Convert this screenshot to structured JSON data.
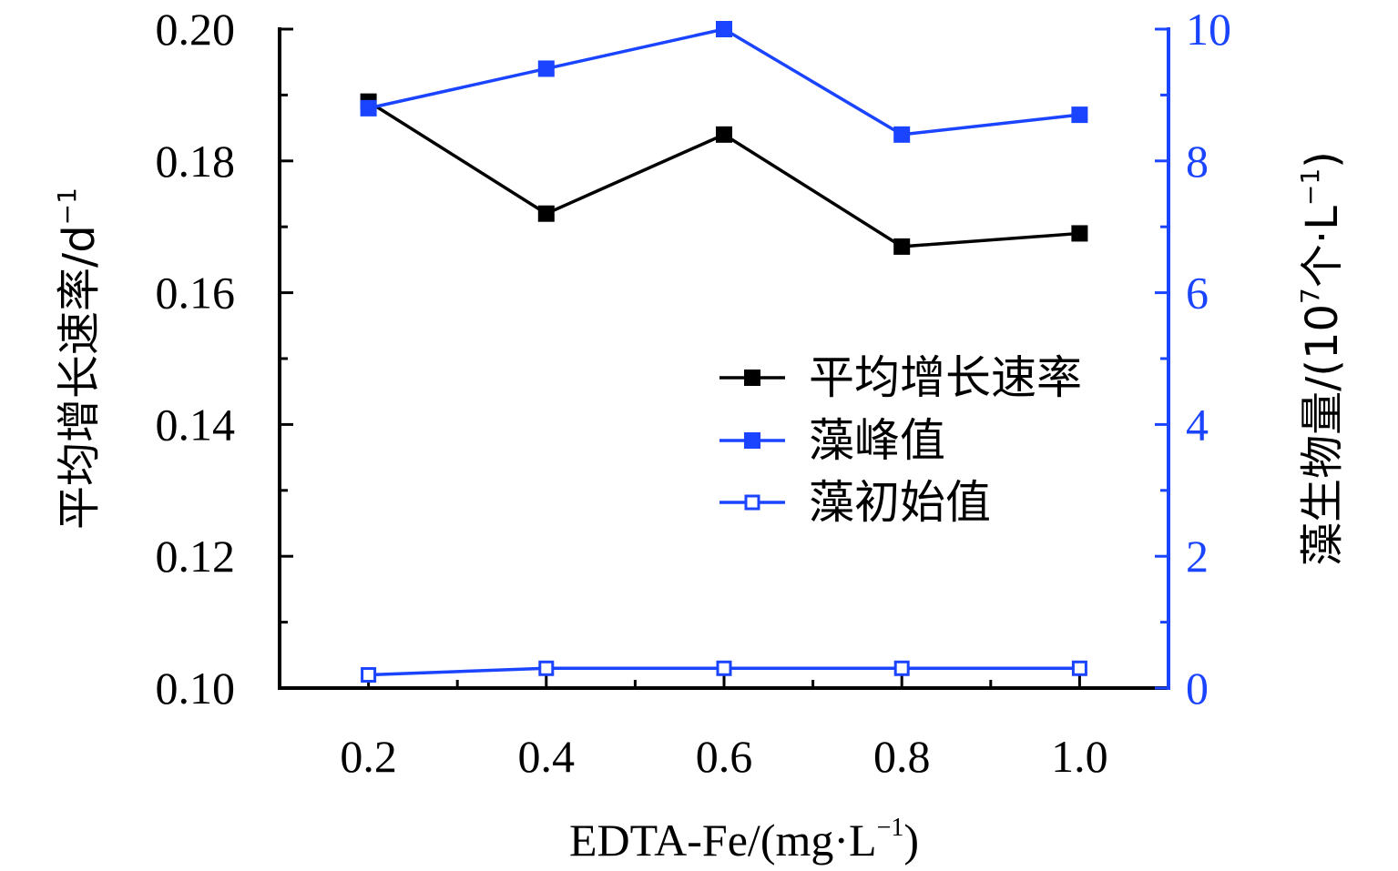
{
  "chart_data": {
    "type": "line",
    "x": [
      0.2,
      0.4,
      0.6,
      0.8,
      1.0
    ],
    "x_tick_labels": [
      "0.2",
      "0.4",
      "0.6",
      "0.8",
      "1.0"
    ],
    "xlabel_main": "EDTA-Fe/(mg·L",
    "xlabel_sup": "−1",
    "xlabel_end": ")",
    "xlim": [
      0.1,
      1.1
    ],
    "left_axis": {
      "label_main": "平均增长速率/d",
      "label_sup": "−1",
      "ylim": [
        0.1,
        0.2
      ],
      "tick_labels": [
        "0.10",
        "0.12",
        "0.14",
        "0.16",
        "0.18",
        "0.20"
      ],
      "color": "#000000"
    },
    "right_axis": {
      "label_main": "藻生物量/(10",
      "label_sup1": "7",
      "label_mid": "个·L",
      "label_sup2": "−1",
      "label_end": ")",
      "ylim": [
        0,
        10
      ],
      "tick_labels": [
        "0",
        "2",
        "4",
        "6",
        "8",
        "10"
      ],
      "color": "#1a44ff"
    },
    "series": [
      {
        "name": "平均增长速率",
        "axis": "left",
        "color": "#000000",
        "marker": "filled-square",
        "values": [
          0.189,
          0.172,
          0.184,
          0.167,
          0.169
        ]
      },
      {
        "name": "藻峰值",
        "axis": "right",
        "color": "#1a44ff",
        "marker": "filled-square",
        "values": [
          8.8,
          9.4,
          10.0,
          8.4,
          8.7
        ]
      },
      {
        "name": "藻初始值",
        "axis": "right",
        "color": "#1a44ff",
        "marker": "open-square",
        "values": [
          0.2,
          0.3,
          0.3,
          0.3,
          0.3
        ]
      }
    ],
    "legend_position": "center-right"
  }
}
